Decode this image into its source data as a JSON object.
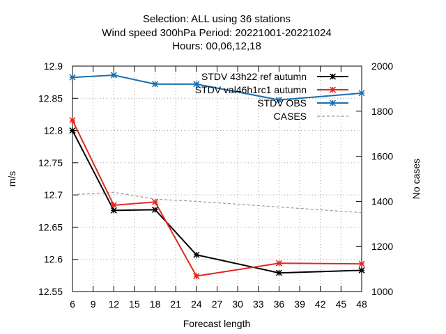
{
  "chart_data": {
    "type": "line",
    "title_lines": [
      "Selection: ALL using    36 stations",
      "Wind speed 300hPa   Period: 20221001-20221024",
      "Hours:  00,06,12,18"
    ],
    "xlabel": "Forecast length",
    "ylabel": "m/s",
    "y2label": "No cases",
    "x_ticks": [
      6,
      9,
      12,
      15,
      18,
      21,
      24,
      27,
      30,
      33,
      36,
      39,
      42,
      45,
      48
    ],
    "xlim": [
      6,
      48
    ],
    "ylim": [
      12.55,
      12.9
    ],
    "y_ticks": [
      12.55,
      12.6,
      12.65,
      12.7,
      12.75,
      12.8,
      12.85,
      12.9
    ],
    "y2lim": [
      1000,
      2000
    ],
    "y2_ticks": [
      1000,
      1200,
      1400,
      1600,
      1800,
      2000
    ],
    "grid": true,
    "legend_position": "top-right",
    "series": [
      {
        "name": "STDV 43h22_ref_autumn",
        "legend_label": "STDV 43h22 ref autumn",
        "axis": "left",
        "color": "#000000",
        "marker": "asterisk",
        "x": [
          6,
          12,
          18,
          24,
          36,
          48
        ],
        "values": [
          12.8,
          12.676,
          12.677,
          12.607,
          12.579,
          12.583
        ]
      },
      {
        "name": "STDV val46h1rc1_autumn",
        "legend_label": "STDV val46h1rc1 autumn",
        "axis": "left",
        "color": "#e3261e",
        "marker": "asterisk",
        "x": [
          6,
          12,
          18,
          24,
          36,
          48
        ],
        "values": [
          12.816,
          12.684,
          12.689,
          12.574,
          12.594,
          12.593
        ]
      },
      {
        "name": "STDV OBS",
        "legend_label": "STDV OBS",
        "axis": "right",
        "color": "#1a6fae",
        "marker": "asterisk",
        "x": [
          6,
          12,
          18,
          24,
          36,
          48
        ],
        "values": [
          1950,
          1960,
          1920,
          1920,
          1850,
          1880
        ]
      },
      {
        "name": "CASES",
        "legend_label": "CASES",
        "axis": "right",
        "color": "#999999",
        "dashed": true,
        "marker": "none",
        "x": [
          6,
          12,
          18,
          24,
          36,
          48
        ],
        "values": [
          1430,
          1440,
          1410,
          1400,
          1375,
          1350
        ]
      }
    ]
  }
}
